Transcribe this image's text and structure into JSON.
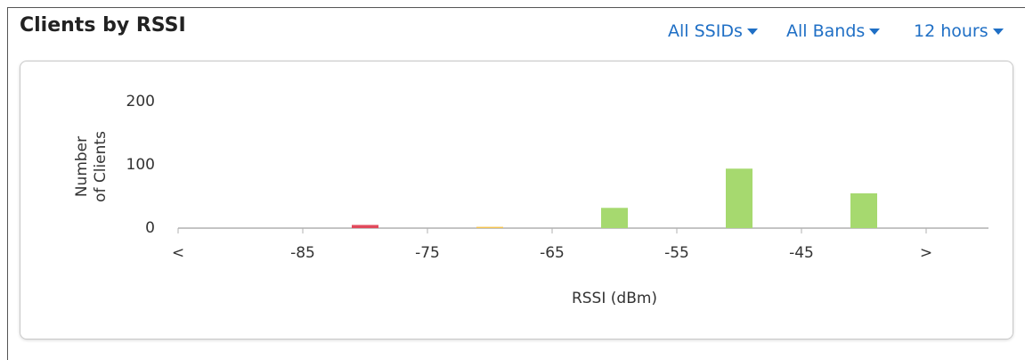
{
  "header": {
    "title": "Clients by RSSI",
    "filters": [
      "All SSIDs",
      "All Bands",
      "12 hours"
    ]
  },
  "chart_data": {
    "type": "histogram",
    "y_label": "Number of Clients",
    "x_label": "RSSI (dBm)",
    "bin_edge_labels": [
      "<",
      "-85",
      "-75",
      "-65",
      "-55",
      "-45",
      ">"
    ],
    "values": [
      0,
      5,
      2,
      32,
      94,
      55
    ],
    "colors": [
      "#e14a5c",
      "#e14a5c",
      "#f2c24f",
      "#a6d96f",
      "#a6d96f",
      "#a6d96f"
    ],
    "ylim": [
      0,
      200
    ],
    "yticks": [
      0,
      100,
      200
    ],
    "grid": false
  }
}
